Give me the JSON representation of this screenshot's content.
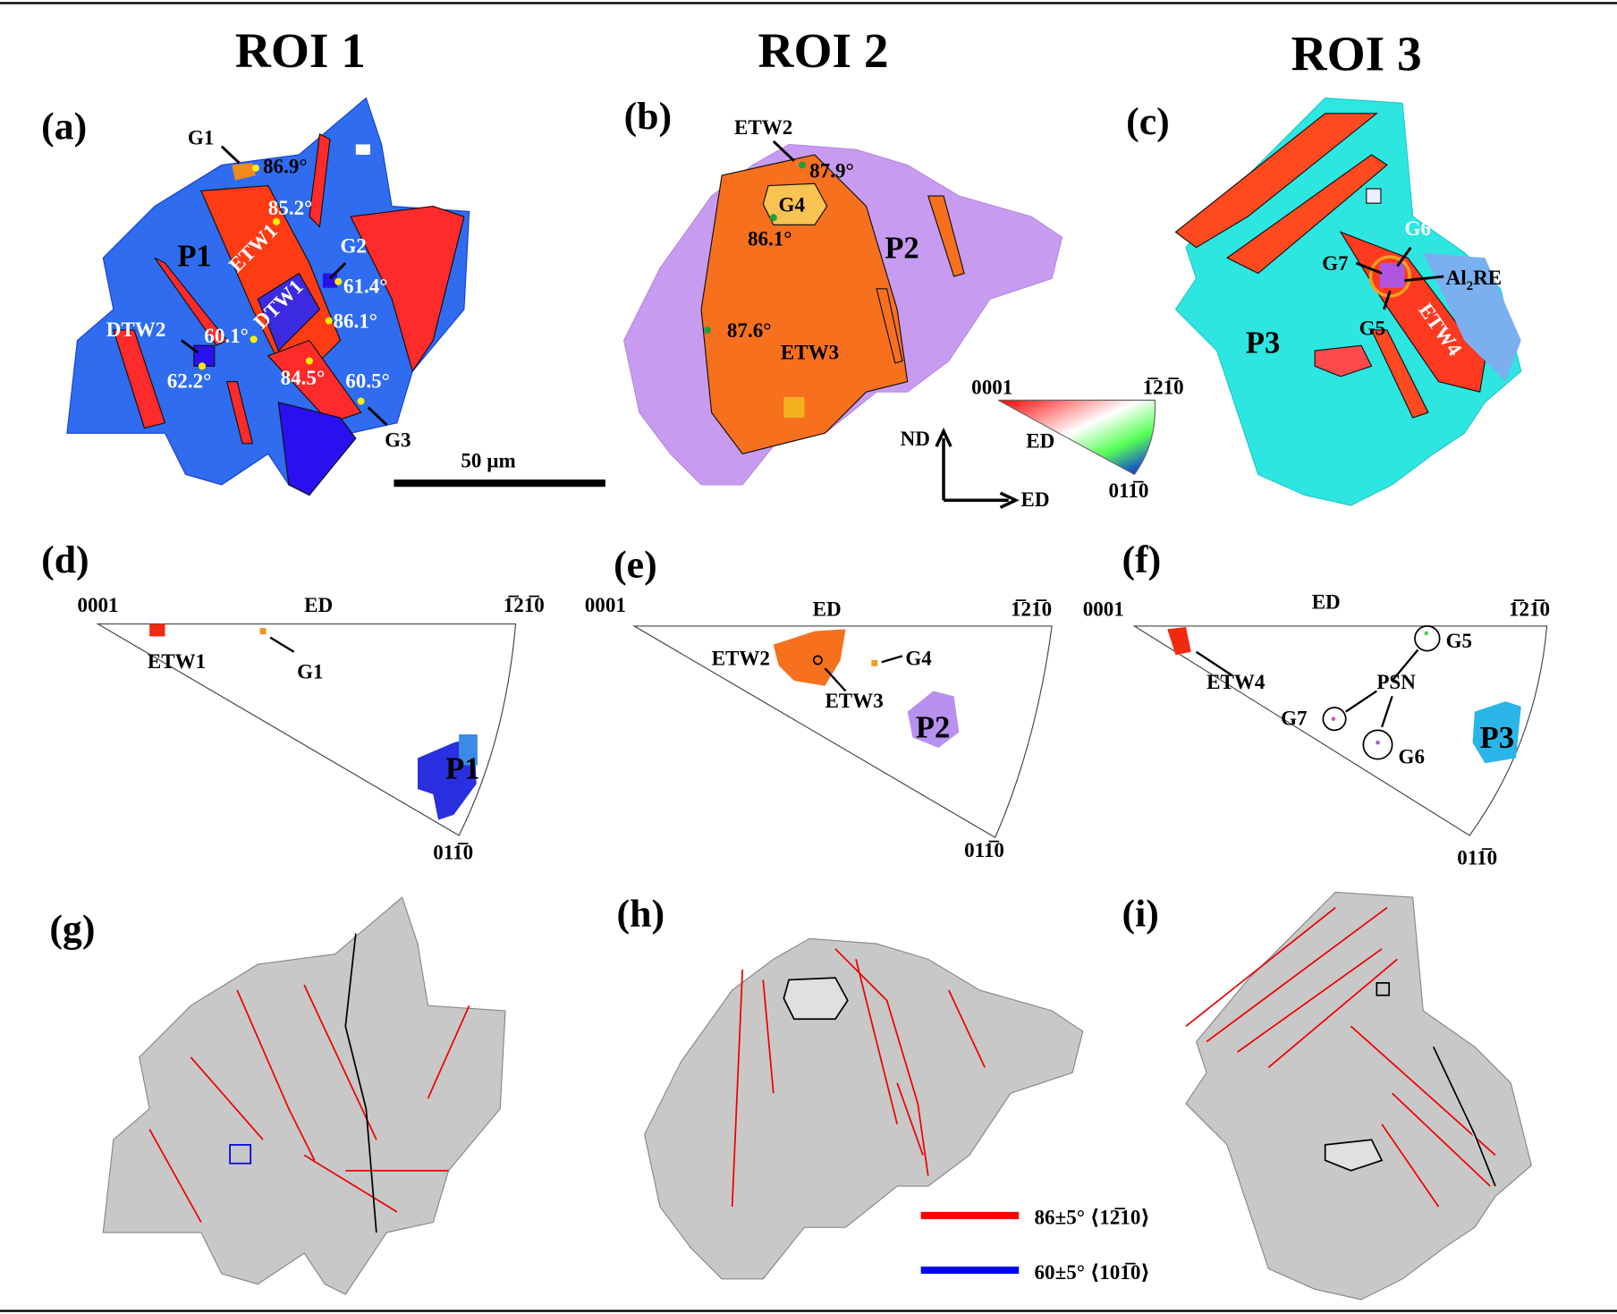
{
  "headers": [
    "ROI 1",
    "ROI 2",
    "ROI 3"
  ],
  "panel_labels": [
    "(a)",
    "(b)",
    "(c)",
    "(d)",
    "(e)",
    "(f)",
    "(g)",
    "(h)",
    "(i)"
  ],
  "panel_a": {
    "labels": [
      "G1",
      "P1",
      "ETW1",
      "DTW1",
      "G2",
      "DTW2",
      "G3"
    ],
    "angles": [
      "86.9°",
      "85.2°",
      "61.4°",
      "86.1°",
      "60.1°",
      "62.2°",
      "84.5°",
      "60.5°"
    ],
    "scale_bar": "50 µm"
  },
  "panel_b": {
    "labels": [
      "ETW2",
      "G4",
      "P2",
      "ETW3"
    ],
    "angles": [
      "87.9°",
      "86.1°",
      "87.6°"
    ]
  },
  "panel_c": {
    "labels": [
      "G6",
      "G7",
      "Al",
      "2",
      "RE",
      "G5",
      "ETW4",
      "P3"
    ]
  },
  "ipf_key": {
    "corners": [
      "0001",
      "1̅21̅0",
      "011̅0"
    ],
    "direction": "ED",
    "axes": [
      "ND",
      "ED"
    ]
  },
  "ipf_d": {
    "corners": [
      "0001",
      "ED",
      "1̅21̅0",
      "011̅0"
    ],
    "labels": [
      "ETW1",
      "G1",
      "P1"
    ]
  },
  "ipf_e": {
    "corners": [
      "0001",
      "ED",
      "1̅21̅0",
      "011̅0"
    ],
    "labels": [
      "ETW2",
      "G4",
      "ETW3",
      "P2"
    ]
  },
  "ipf_f": {
    "corners": [
      "0001",
      "ED",
      "1̅21̅0",
      "011̅0"
    ],
    "labels": [
      "ETW4",
      "G5",
      "PSN",
      "G7",
      "G6",
      "P3"
    ]
  },
  "legend": [
    {
      "label": "86±5° ⟨12̅10⟩",
      "color": "#ff0000"
    },
    {
      "label": "60±5° ⟨101̅0⟩",
      "color": "#0000ff"
    }
  ]
}
